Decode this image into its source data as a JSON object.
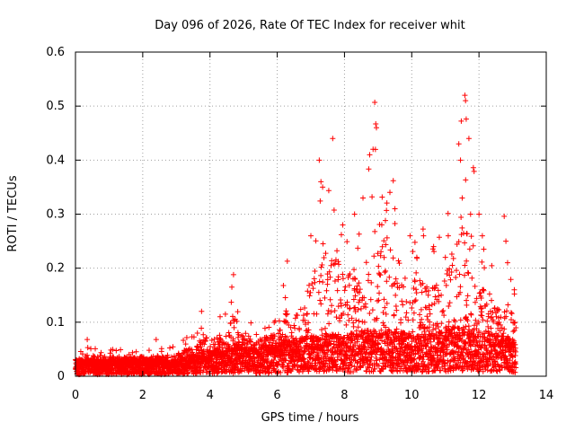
{
  "chart_data": {
    "type": "scatter",
    "title": "Day 096 of 2026, Rate Of TEC Index for receiver whit",
    "xlabel": "GPS time / hours",
    "ylabel": "ROTI / TECUs",
    "xlim": [
      0,
      14
    ],
    "ylim": [
      0,
      0.6
    ],
    "xticks": [
      0,
      2,
      4,
      6,
      8,
      10,
      12,
      14
    ],
    "xtick_labels": [
      "0",
      "2",
      "4",
      "6",
      "8",
      "10",
      "12",
      "14"
    ],
    "yticks": [
      0,
      0.1,
      0.2,
      0.3,
      0.4,
      0.5,
      0.6
    ],
    "ytick_labels": [
      "0",
      "0.1",
      "0.2",
      "0.3",
      "0.4",
      "0.5",
      "0.6"
    ],
    "grid": true,
    "marker": "+",
    "color": "#ff0000",
    "series_envelope": {
      "description": "dense scatter of ROTI samples; base-level and upper envelope in data units",
      "x": [
        0,
        0.5,
        1,
        1.5,
        2,
        2.5,
        3,
        3.5,
        3.8,
        4,
        4.5,
        4.7,
        5,
        5.5,
        6,
        6.3,
        6.5,
        7,
        7.3,
        7.7,
        8,
        8.5,
        8.8,
        9,
        9.5,
        10,
        10.5,
        11,
        11.5,
        11.7,
        12,
        12.5,
        13,
        13.1
      ],
      "base": [
        0.02,
        0.02,
        0.02,
        0.02,
        0.02,
        0.02,
        0.02,
        0.025,
        0.03,
        0.03,
        0.035,
        0.04,
        0.035,
        0.035,
        0.04,
        0.045,
        0.045,
        0.05,
        0.05,
        0.05,
        0.05,
        0.055,
        0.055,
        0.055,
        0.055,
        0.05,
        0.05,
        0.055,
        0.06,
        0.06,
        0.055,
        0.05,
        0.045,
        0.04
      ],
      "top": [
        0.04,
        0.06,
        0.05,
        0.05,
        0.05,
        0.05,
        0.06,
        0.08,
        0.12,
        0.1,
        0.12,
        0.18,
        0.1,
        0.1,
        0.12,
        0.2,
        0.16,
        0.26,
        0.4,
        0.44,
        0.3,
        0.34,
        0.42,
        0.5,
        0.36,
        0.3,
        0.26,
        0.28,
        0.52,
        0.5,
        0.3,
        0.2,
        0.18,
        0.14
      ]
    },
    "highlights": [
      {
        "x": 0.35,
        "y": 0.068
      },
      {
        "x": 2.4,
        "y": 0.068
      },
      {
        "x": 3.75,
        "y": 0.12
      },
      {
        "x": 4.7,
        "y": 0.188
      },
      {
        "x": 4.65,
        "y": 0.165
      },
      {
        "x": 6.3,
        "y": 0.213
      },
      {
        "x": 7.0,
        "y": 0.26
      },
      {
        "x": 7.25,
        "y": 0.4
      },
      {
        "x": 7.3,
        "y": 0.36
      },
      {
        "x": 7.35,
        "y": 0.35
      },
      {
        "x": 7.65,
        "y": 0.44
      },
      {
        "x": 7.95,
        "y": 0.28
      },
      {
        "x": 8.3,
        "y": 0.3
      },
      {
        "x": 8.55,
        "y": 0.33
      },
      {
        "x": 8.75,
        "y": 0.41
      },
      {
        "x": 8.85,
        "y": 0.42
      },
      {
        "x": 8.9,
        "y": 0.507
      },
      {
        "x": 8.93,
        "y": 0.467
      },
      {
        "x": 8.95,
        "y": 0.46
      },
      {
        "x": 9.45,
        "y": 0.362
      },
      {
        "x": 9.5,
        "y": 0.31
      },
      {
        "x": 9.95,
        "y": 0.26
      },
      {
        "x": 10.15,
        "y": 0.22
      },
      {
        "x": 10.35,
        "y": 0.26
      },
      {
        "x": 10.65,
        "y": 0.24
      },
      {
        "x": 11.0,
        "y": 0.22
      },
      {
        "x": 11.4,
        "y": 0.43
      },
      {
        "x": 11.45,
        "y": 0.4
      },
      {
        "x": 11.5,
        "y": 0.33
      },
      {
        "x": 11.58,
        "y": 0.52
      },
      {
        "x": 11.6,
        "y": 0.51
      },
      {
        "x": 11.62,
        "y": 0.476
      },
      {
        "x": 11.7,
        "y": 0.44
      },
      {
        "x": 11.75,
        "y": 0.3
      },
      {
        "x": 12.0,
        "y": 0.3
      },
      {
        "x": 12.1,
        "y": 0.26
      },
      {
        "x": 12.75,
        "y": 0.296
      },
      {
        "x": 12.8,
        "y": 0.25
      },
      {
        "x": 12.85,
        "y": 0.21
      },
      {
        "x": 13.05,
        "y": 0.16
      }
    ]
  }
}
